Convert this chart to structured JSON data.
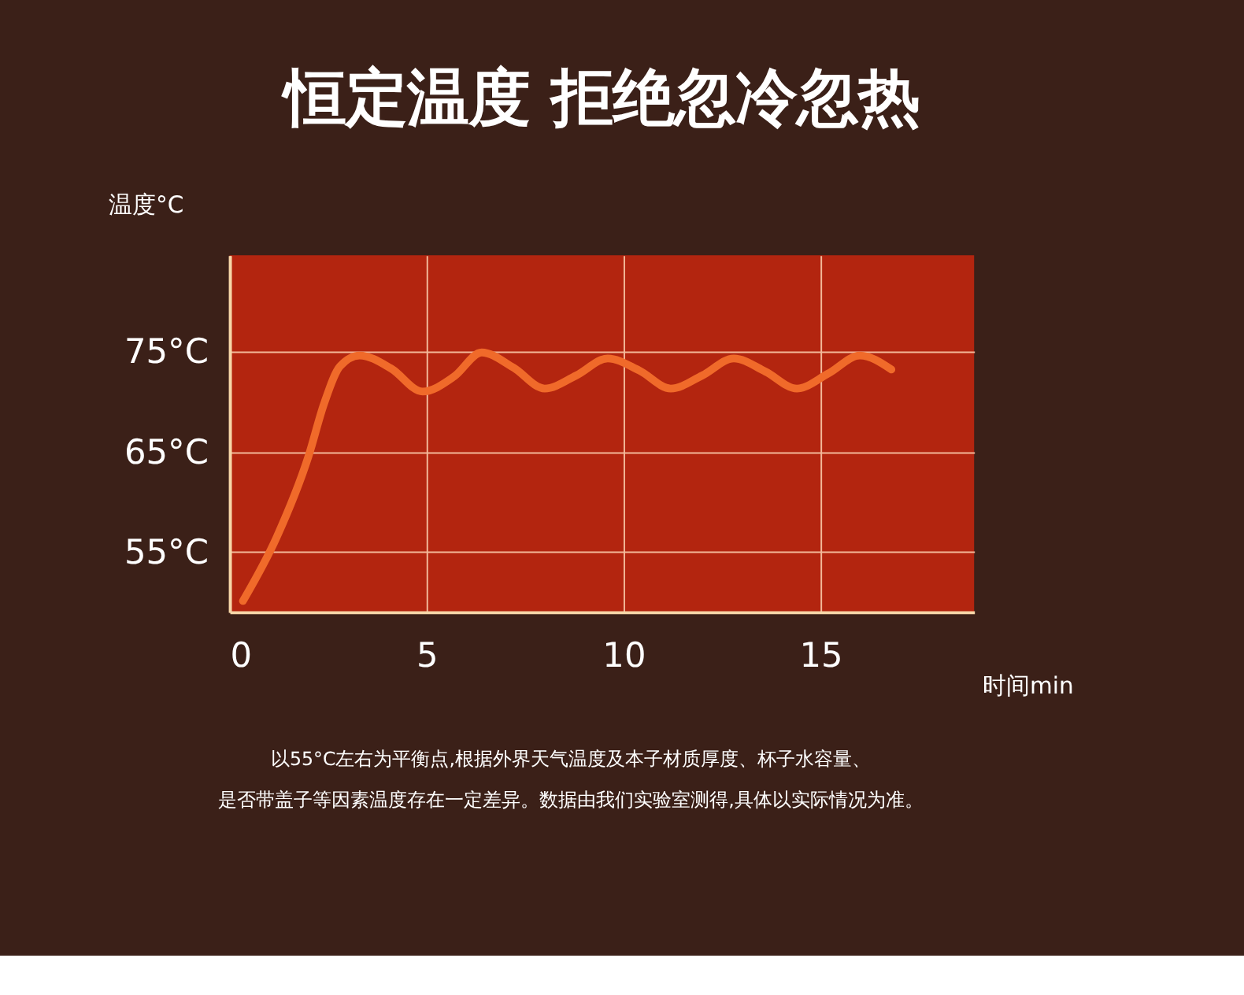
{
  "chart_data": {
    "type": "line",
    "title": "恒定温度 拒绝忽冷忽热",
    "xlabel": "时间min",
    "ylabel": "温度°C",
    "xlim": [
      0,
      18.9
    ],
    "xticks": [
      0,
      5,
      10,
      15
    ],
    "ylim": [
      49,
      84.6
    ],
    "yticks": [
      {
        "value": 55,
        "label": "55°C"
      },
      {
        "value": 65,
        "label": "65°C"
      },
      {
        "value": 75,
        "label": "75°C"
      }
    ],
    "grid": true,
    "series": [
      {
        "color": "#f06a2a",
        "x": [
          0.34,
          1.2,
          2.0,
          2.4,
          2.8,
          3.3,
          4.1,
          4.9,
          5.7,
          6.4,
          7.2,
          8.0,
          8.8,
          9.6,
          10.4,
          11.2,
          12.0,
          12.8,
          13.6,
          14.4,
          15.2,
          16.0,
          16.8
        ],
        "values": [
          50.1,
          56.5,
          64.5,
          69.8,
          73.5,
          74.6,
          73.3,
          71.0,
          72.5,
          74.9,
          73.4,
          71.3,
          72.6,
          74.3,
          73.1,
          71.3,
          72.6,
          74.3,
          73.0,
          71.3,
          72.8,
          74.6,
          73.2
        ]
      }
    ],
    "annotations": [
      "以55°C左右为平衡点,根据外界天气温度及本子材质厚度、杯子水容量、",
      "是否带盖子等因素温度存在一定差异。数据由我们实验室测得,具体以实际情况为准。"
    ]
  }
}
